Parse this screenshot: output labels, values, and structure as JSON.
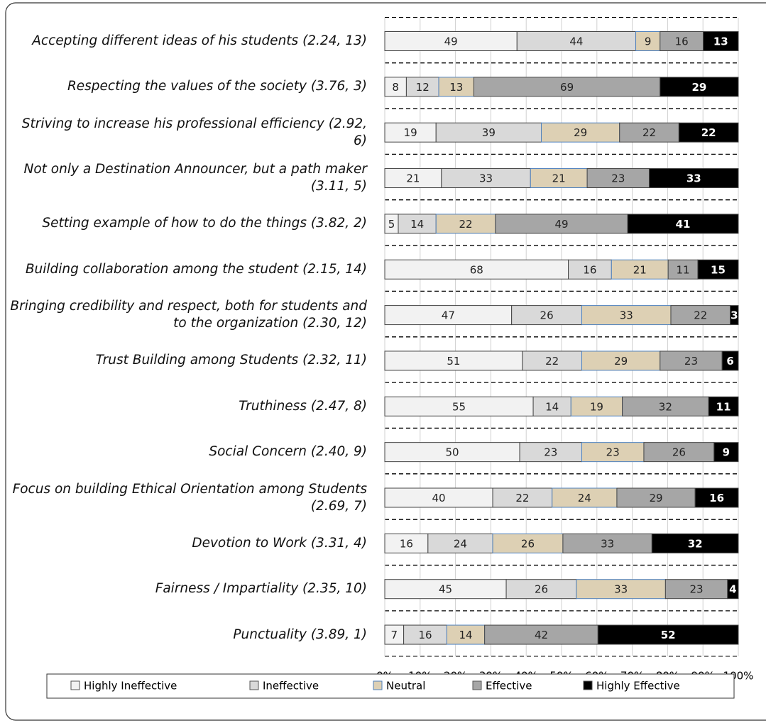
{
  "chart_data": {
    "type": "stacked_bar_100",
    "categories": [
      "Accepting different ideas of his students (2.24, 13)",
      "Respecting the values of the society (3.76, 3)",
      "Striving to increase his professional efficiency (2.92, 6)",
      "Not only a Destination Announcer, but a path maker (3.11, 5)",
      "Setting example of how to do the things (3.82, 2)",
      "Building collaboration among the student (2.15, 14)",
      "Bringing credibility and respect, both for students and to the organization (2.30, 12)",
      "Trust Building among Students (2.32, 11)",
      "Truthiness (2.47, 8)",
      "Social Concern (2.40, 9)",
      "Focus on building Ethical Orientation among Students (2.69, 7)",
      "Devotion to Work (3.31, 4)",
      "Fairness / Impartiality (2.35, 10)",
      "Punctuality (3.89, 1)"
    ],
    "series": [
      {
        "name": "Highly Ineffective",
        "color": "#f2f2f2",
        "values": [
          49,
          8,
          19,
          21,
          5,
          68,
          47,
          51,
          55,
          50,
          40,
          16,
          45,
          7
        ]
      },
      {
        "name": "Ineffective",
        "color": "#d9d9d9",
        "values": [
          44,
          12,
          39,
          33,
          14,
          16,
          26,
          22,
          14,
          23,
          22,
          24,
          26,
          16
        ]
      },
      {
        "name": "Neutral",
        "color": "#ddd0b4",
        "values": [
          9,
          13,
          29,
          21,
          22,
          21,
          33,
          29,
          19,
          23,
          24,
          26,
          33,
          14
        ]
      },
      {
        "name": "Effective",
        "color": "#a6a6a6",
        "values": [
          16,
          69,
          22,
          23,
          49,
          11,
          22,
          23,
          32,
          26,
          29,
          33,
          23,
          42
        ]
      },
      {
        "name": "Highly Effective",
        "color": "#000000",
        "values": [
          13,
          29,
          22,
          33,
          41,
          15,
          3,
          6,
          11,
          9,
          16,
          32,
          4,
          52
        ]
      }
    ],
    "xlim": [
      0,
      100
    ],
    "xticks": [
      {
        "value": 0,
        "label": "0%"
      },
      {
        "value": 10,
        "label": "10%"
      },
      {
        "value": 20,
        "label": "20%"
      },
      {
        "value": 30,
        "label": "30%"
      },
      {
        "value": 40,
        "label": "40%"
      },
      {
        "value": 50,
        "label": "50%"
      },
      {
        "value": 60,
        "label": "60%"
      },
      {
        "value": 70,
        "label": "70%"
      },
      {
        "value": 80,
        "label": "80%"
      },
      {
        "value": 90,
        "label": "90%"
      },
      {
        "value": 100,
        "label": "100%"
      }
    ],
    "legend": "bottom"
  }
}
